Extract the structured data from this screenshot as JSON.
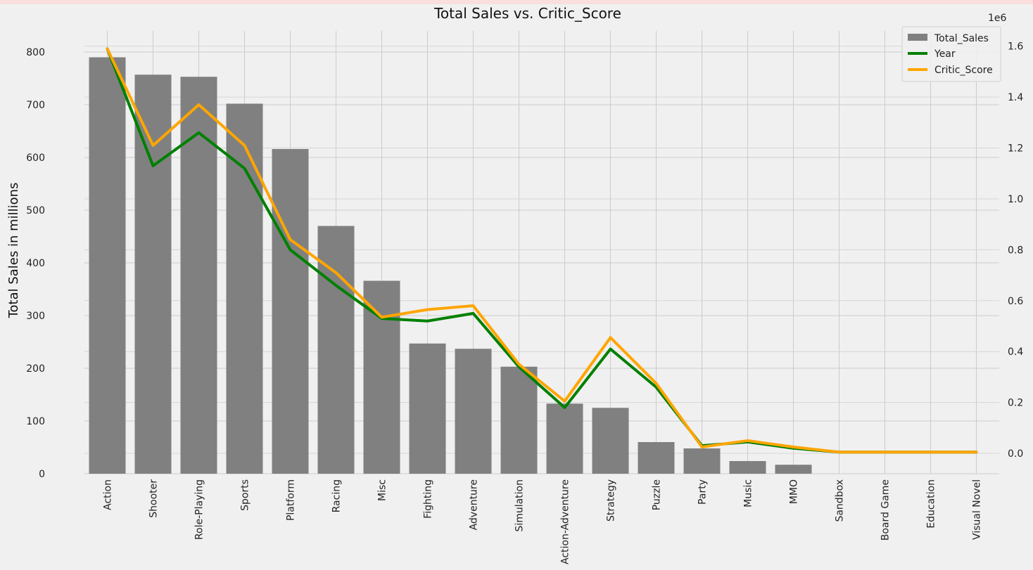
{
  "chart_data": {
    "type": "bar",
    "title": "Total Sales vs. Critic_Score",
    "xlabel": "",
    "ylabel": "Total Sales in millions",
    "categories": [
      "Action",
      "Shooter",
      "Role-Playing",
      "Sports",
      "Platform",
      "Racing",
      "Misc",
      "Fighting",
      "Adventure",
      "Simulation",
      "Action-Adventure",
      "Strategy",
      "Puzzle",
      "Party",
      "Music",
      "MMO",
      "Sandbox",
      "Board Game",
      "Education",
      "Visual Novel"
    ],
    "ylim": [
      0,
      840
    ],
    "yticks": [
      0,
      100,
      200,
      300,
      400,
      500,
      600,
      700,
      800
    ],
    "y2lim": [
      -0.08,
      1.66
    ],
    "y2ticks": [
      0.0,
      0.2,
      0.4,
      0.6,
      0.8,
      1.0,
      1.2,
      1.4,
      1.6
    ],
    "y2_offset_label": "1e6",
    "grid": true,
    "legend_position": "top-right",
    "series": [
      {
        "name": "Total_Sales",
        "kind": "bar",
        "axis": "left",
        "color": "#808080",
        "values": [
          790,
          757,
          753,
          702,
          616,
          470,
          366,
          247,
          237,
          203,
          133,
          125,
          60,
          48,
          24,
          17,
          0,
          0,
          0,
          0
        ]
      },
      {
        "name": "Year",
        "kind": "line",
        "axis": "right",
        "color": "#008000",
        "values": [
          1.59,
          1.13,
          1.26,
          1.12,
          0.8,
          0.66,
          0.53,
          0.52,
          0.55,
          0.34,
          0.18,
          0.41,
          0.26,
          0.03,
          0.045,
          0.02,
          0.005,
          0.005,
          0.005,
          0.005
        ]
      },
      {
        "name": "Critic_Score",
        "kind": "line",
        "axis": "right",
        "color": "#FFA500",
        "values": [
          1.59,
          1.21,
          1.37,
          1.21,
          0.84,
          0.71,
          0.535,
          0.565,
          0.58,
          0.35,
          0.205,
          0.455,
          0.275,
          0.025,
          0.05,
          0.025,
          0.005,
          0.005,
          0.005,
          0.005
        ]
      }
    ]
  }
}
